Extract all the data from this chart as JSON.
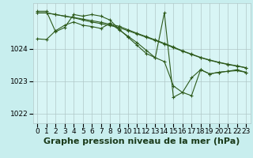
{
  "background_color": "#c8eeee",
  "plot_bg_color": "#d8f5f5",
  "grid_color": "#b0c8c8",
  "line_color": "#2d5a1b",
  "xlabel": "Graphe pression niveau de la mer (hPa)",
  "xlabel_fontsize": 8,
  "tick_fontsize": 6.5,
  "ylim": [
    1021.7,
    1025.4
  ],
  "xlim": [
    -0.5,
    23.5
  ],
  "yticks": [
    1022,
    1023,
    1024
  ],
  "xticks": [
    0,
    1,
    2,
    3,
    4,
    5,
    6,
    7,
    8,
    9,
    10,
    11,
    12,
    13,
    14,
    15,
    16,
    17,
    18,
    19,
    20,
    21,
    22,
    23
  ],
  "series": [
    [
      1025.1,
      1025.1,
      1025.05,
      1025.0,
      1024.95,
      1024.88,
      1024.82,
      1024.77,
      1024.71,
      1024.65,
      1024.55,
      1024.45,
      1024.35,
      1024.25,
      1024.14,
      1024.03,
      1023.92,
      1023.82,
      1023.72,
      1023.64,
      1023.57,
      1023.51,
      1023.46,
      1023.41
    ],
    [
      1025.1,
      1025.1,
      1025.05,
      1025.0,
      1024.96,
      1024.91,
      1024.86,
      1024.81,
      1024.75,
      1024.69,
      1024.58,
      1024.47,
      1024.37,
      1024.27,
      1024.16,
      1024.05,
      1023.93,
      1023.83,
      1023.73,
      1023.65,
      1023.58,
      1023.52,
      1023.47,
      1023.41
    ],
    [
      1024.3,
      1024.28,
      1024.55,
      1024.72,
      1024.82,
      1024.72,
      1024.68,
      1024.62,
      1024.78,
      1024.58,
      1024.38,
      1024.18,
      1023.95,
      1023.72,
      1023.6,
      1022.85,
      1022.65,
      1023.1,
      1023.35,
      1023.22,
      1023.27,
      1023.3,
      1023.32,
      1023.27
    ],
    [
      1025.15,
      1025.15,
      1024.52,
      1024.65,
      1025.05,
      1025.0,
      1025.05,
      1025.0,
      1024.88,
      1024.6,
      1024.35,
      1024.1,
      1023.85,
      1023.72,
      1025.1,
      1022.5,
      1022.65,
      1022.55,
      1023.35,
      1023.22,
      1023.27,
      1023.3,
      1023.35,
      1023.27
    ]
  ],
  "marker": "+",
  "markersize": 3,
  "linewidth": 0.8,
  "markeredgewidth": 0.8
}
